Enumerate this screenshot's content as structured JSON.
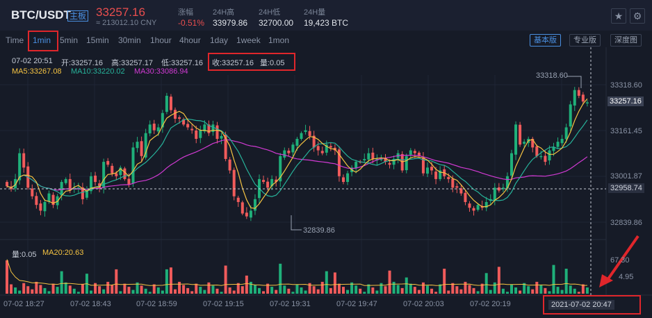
{
  "header": {
    "pair": "BTC/USDT",
    "badge": "主板",
    "price": "33257.16",
    "cny": "≈ 213012.10 CNY",
    "stats": [
      {
        "label": "涨幅",
        "value": "-0.51%",
        "color": "#e94e4e"
      },
      {
        "label": "24H高",
        "value": "33979.86",
        "color": "#e0e4ea"
      },
      {
        "label": "24H低",
        "value": "32700.00",
        "color": "#e0e4ea"
      },
      {
        "label": "24H量",
        "value": "19,423 BTC",
        "color": "#e0e4ea"
      }
    ]
  },
  "toolbar": {
    "timeframes": [
      "Time",
      "1min",
      "5min",
      "15min",
      "30min",
      "1hour",
      "4hour",
      "1day",
      "1week",
      "1mon"
    ],
    "active_timeframe": "1min",
    "views": [
      "基本版",
      "专业版",
      "深度图"
    ],
    "active_view": "基本版"
  },
  "ohlc": {
    "time": "07-02 20:51",
    "open": "开:33257.16",
    "high": "高:33257.17",
    "low": "低:33257.16",
    "close": "收:33257.16",
    "volume": "量:0.05"
  },
  "ma": {
    "ma5": "MA5:33267.08",
    "ma10": "MA10:33220.02",
    "ma30": "MA30:33086.94"
  },
  "vol_legend": {
    "vol": "量:0.05",
    "ma20": "MA20:20.63"
  },
  "price_axis": [
    "33318.60",
    "33161.45",
    "33001.87",
    "32958.74",
    "32839.86"
  ],
  "current_price_tag": "33257.16",
  "annotations": {
    "high": "33318.60",
    "low": "32839.86"
  },
  "volume_axis": [
    "67.30",
    "4.95"
  ],
  "time_axis": [
    "07-02 18:27",
    "07-02 18:43",
    "07-02 18:59",
    "07-02 19:15",
    "07-02 19:31",
    "07-02 19:47",
    "07-02 20:03",
    "07-02 20:19"
  ],
  "crosshair_time": "2021-07-02 20:47",
  "colors": {
    "up": "#1fb07a",
    "down": "#f05b5b",
    "ma5": "#f5c342",
    "ma10": "#27b39b",
    "ma30": "#d23ad4",
    "accent": "#4a90e2"
  },
  "chart_data": {
    "type": "candlestick",
    "close": [
      32965,
      32955,
      32990,
      33080,
      33030,
      32960,
      32930,
      32900,
      32880,
      32910,
      32940,
      32900,
      32930,
      32980,
      32990,
      32950,
      32960,
      32960,
      32920,
      32950,
      33000,
      32980,
      32960,
      33050,
      33040,
      33010,
      33000,
      33030,
      32990,
      32970,
      33100,
      33120,
      33070,
      33150,
      33180,
      33160,
      33170,
      33220,
      33280,
      33230,
      33200,
      33200,
      33180,
      33170,
      33160,
      33130,
      33160,
      33180,
      33150,
      33180,
      33130,
      33140,
      33060,
      33020,
      32930,
      32910,
      32870,
      32860,
      32880,
      32920,
      32990,
      32980,
      32960,
      32990,
      32980,
      33070,
      33090,
      33080,
      33110,
      33130,
      33150,
      33160,
      33140,
      33100,
      33090,
      33080,
      33110,
      33100,
      33090,
      33000,
      32980,
      33010,
      33030,
      33050,
      33050,
      33060,
      33080,
      33060,
      33060,
      33060,
      33050,
      33040,
      33060,
      33080,
      33020,
      33070,
      33090,
      33080,
      33070,
      33010,
      33030,
      33020,
      32990,
      33020,
      33000,
      32990,
      32960,
      32960,
      32940,
      32910,
      32890,
      32880,
      32900,
      32890,
      32910,
      32920,
      32960,
      32950,
      32960,
      33000,
      33080,
      33180,
      33110,
      33120,
      33130,
      33100,
      33070,
      33070,
      33050,
      33090,
      33100,
      33120,
      33130,
      33170,
      33250,
      33300,
      33280,
      33260,
      33257
    ]
  }
}
